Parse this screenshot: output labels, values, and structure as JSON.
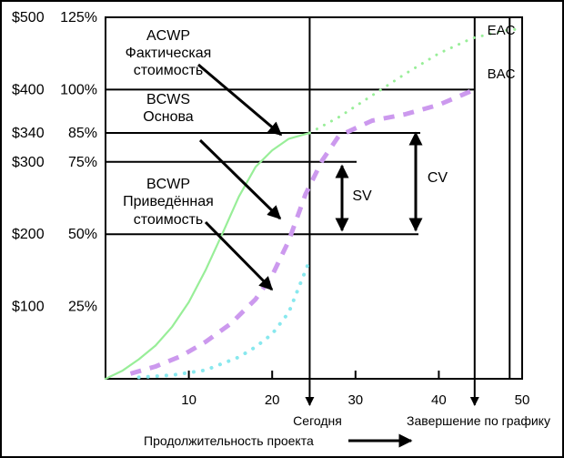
{
  "chart_data": {
    "type": "line",
    "xlabel": "Продолжительность проекта",
    "x_ticks": [
      10,
      20,
      30,
      40,
      50
    ],
    "xlim": [
      0,
      50
    ],
    "y_ticks": [
      {
        "dollars": "$100",
        "percent": "25%",
        "value": 100
      },
      {
        "dollars": "$200",
        "percent": "50%",
        "value": 200
      },
      {
        "dollars": "$300",
        "percent": "75%",
        "value": 300
      },
      {
        "dollars": "$340",
        "percent": "85%",
        "value": 340
      },
      {
        "dollars": "$400",
        "percent": "100%",
        "value": 400
      },
      {
        "dollars": "$500",
        "percent": "125%",
        "value": 500
      }
    ],
    "ylim": [
      0,
      500
    ],
    "series": [
      {
        "name": "ACWP",
        "color": "#98ee98",
        "style": "solid",
        "x": [
          0,
          2,
          4,
          6,
          8,
          10,
          12,
          14,
          16,
          18,
          20,
          22,
          24.5
        ],
        "y": [
          0,
          11,
          27,
          46,
          72,
          106,
          150,
          200,
          252,
          293,
          316,
          332,
          340
        ]
      },
      {
        "name": "ACWP-forecast",
        "color": "#98ee98",
        "style": "dotted",
        "x": [
          24.5,
          28,
          32,
          36,
          40,
          44,
          48,
          50
        ],
        "y": [
          340,
          362,
          392,
          422,
          450,
          471,
          482,
          484
        ]
      },
      {
        "name": "BCWS",
        "color": "#cc99ee",
        "style": "dashed",
        "x": [
          3,
          6,
          9,
          12,
          15,
          18,
          20,
          22,
          24,
          26,
          28,
          32,
          36,
          40,
          44.3
        ],
        "y": [
          7,
          17,
          31,
          51,
          76,
          110,
          143,
          191,
          255,
          302,
          336,
          357,
          366,
          379,
          400
        ]
      },
      {
        "name": "BCWP",
        "color": "#88e8ee",
        "style": "dotted",
        "x": [
          4,
          8,
          12,
          16,
          18,
          20,
          22,
          24.5
        ],
        "y": [
          2,
          5,
          12,
          30,
          44,
          62,
          92,
          164
        ]
      }
    ],
    "reference_lines": {
      "eac": 48.5,
      "bac": 44.3,
      "today": 24.5,
      "levels": [
        400,
        340,
        300,
        200
      ]
    },
    "annotations": {
      "acwp": [
        "ACWP",
        "Фактическая",
        "стоимость"
      ],
      "bcws": [
        "BCWS",
        "Основа"
      ],
      "bcwp": [
        "BCWP",
        "Приведённая",
        "стоимость"
      ],
      "eac": "EAC",
      "bac": "BAC",
      "sv": "SV",
      "cv": "CV",
      "today": "Сегодня",
      "finish": "Завершение по графику"
    },
    "grid": false
  }
}
